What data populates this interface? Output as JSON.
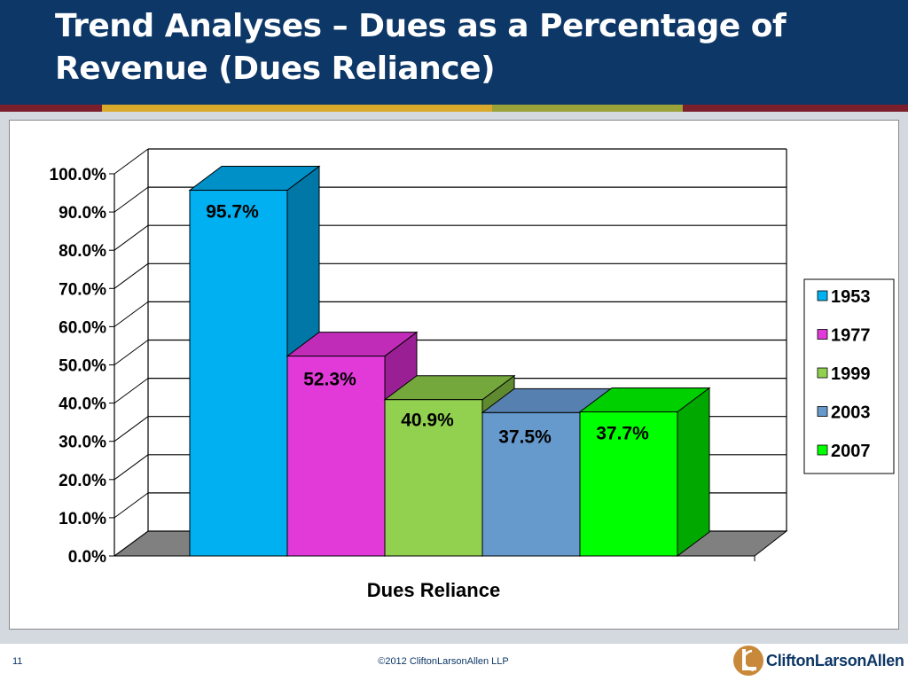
{
  "slide": {
    "title": "Trend Analyses – Dues as a Percentage of Revenue (Dues Reliance)",
    "page_number": "11",
    "copyright": "©2012 CliftonLarsonAllen LLP",
    "logo_text": "CliftonLarsonAllen",
    "colors": {
      "header_bg": "#0d3766",
      "stripe": [
        "#7a1f2b",
        "#d9a92b",
        "#9aa23a",
        "#7a1f2b"
      ]
    }
  },
  "chart_data": {
    "type": "bar",
    "title": "",
    "xlabel": "Dues Reliance",
    "ylabel": "",
    "ylim": [
      0,
      100
    ],
    "y_ticks": [
      "0.0%",
      "10.0%",
      "20.0%",
      "30.0%",
      "40.0%",
      "50.0%",
      "60.0%",
      "70.0%",
      "80.0%",
      "90.0%",
      "100.0%"
    ],
    "categories": [
      "Dues Reliance"
    ],
    "grid": true,
    "legend_position": "right",
    "series": [
      {
        "name": "1953",
        "values": [
          95.7
        ],
        "label": "95.7%",
        "color": "#00b0f0",
        "side": "#0077a6",
        "top": "#0090c8"
      },
      {
        "name": "1977",
        "values": [
          52.3
        ],
        "label": "52.3%",
        "color": "#e23ad8",
        "side": "#9a1f95",
        "top": "#c02cb8"
      },
      {
        "name": "1999",
        "values": [
          40.9
        ],
        "label": "40.9%",
        "color": "#92d050",
        "side": "#5f8a2f",
        "top": "#74a83c"
      },
      {
        "name": "2003",
        "values": [
          37.5
        ],
        "label": "37.5%",
        "color": "#6699cc",
        "side": "#3f6a96",
        "top": "#5580b0"
      },
      {
        "name": "2007",
        "values": [
          37.7
        ],
        "label": "37.7%",
        "color": "#00ff00",
        "side": "#00a800",
        "top": "#00d000"
      }
    ]
  }
}
